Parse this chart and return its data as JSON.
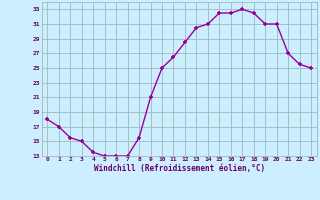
{
  "x": [
    0,
    1,
    2,
    3,
    4,
    5,
    6,
    7,
    8,
    9,
    10,
    11,
    12,
    13,
    14,
    15,
    16,
    17,
    18,
    19,
    20,
    21,
    22,
    23
  ],
  "y": [
    18,
    17,
    15.5,
    15,
    13.5,
    13,
    13,
    13,
    15.5,
    21,
    25,
    26.5,
    28.5,
    30.5,
    31,
    32.5,
    32.5,
    33,
    32.5,
    31,
    31,
    27,
    25.5,
    25
  ],
  "line_color": "#990099",
  "marker": "+",
  "bg_color": "#cceeff",
  "grid_color": "#99bbbb",
  "xlabel": "Windchill (Refroidissement éolien,°C)",
  "xlabel_color": "#660066",
  "tick_color": "#660066",
  "ylim": [
    13,
    34
  ],
  "yticks": [
    13,
    15,
    17,
    19,
    21,
    23,
    25,
    27,
    29,
    31,
    33
  ],
  "xticks": [
    0,
    1,
    2,
    3,
    4,
    5,
    6,
    7,
    8,
    9,
    10,
    11,
    12,
    13,
    14,
    15,
    16,
    17,
    18,
    19,
    20,
    21,
    22,
    23
  ],
  "xlim": [
    -0.5,
    23.5
  ]
}
